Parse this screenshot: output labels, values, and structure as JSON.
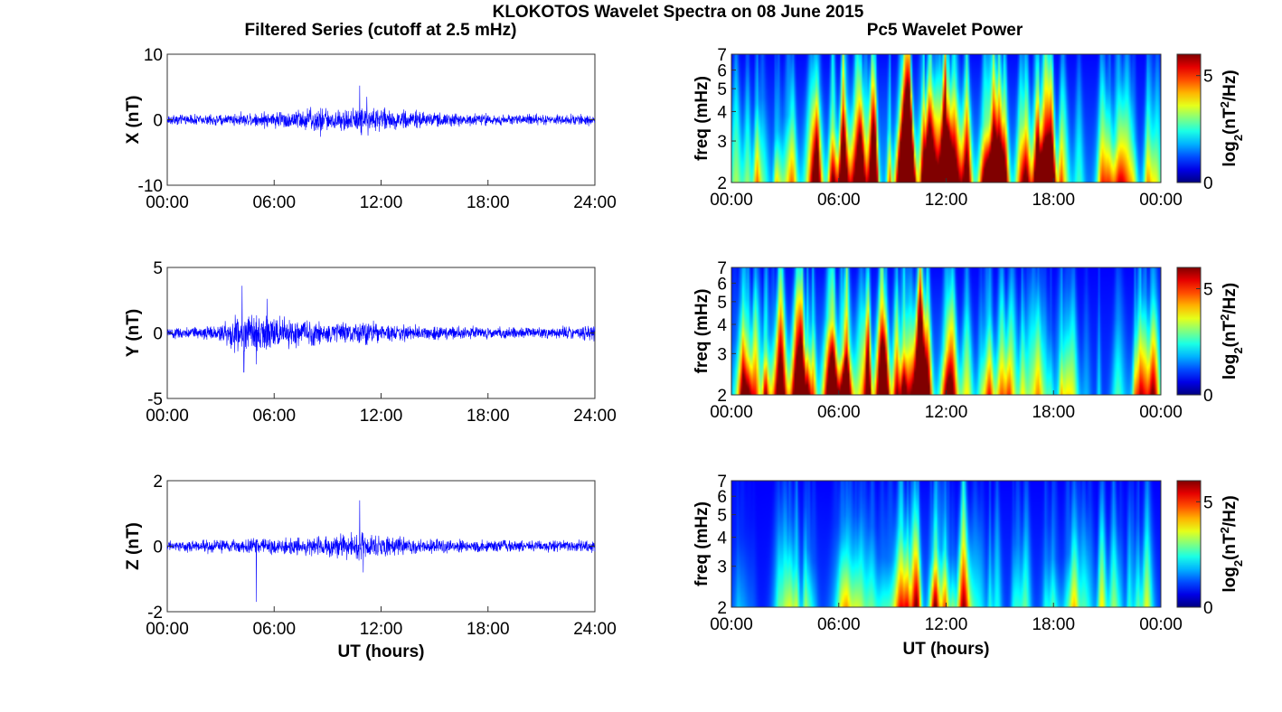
{
  "figure": {
    "title": "KLOKOTOS Wavelet Spectra on 08 June 2015",
    "left_column_title": "Filtered Series (cutoff at 2.5 mHz)",
    "right_column_title": "Pc5 Wavelet Power"
  },
  "colors": {
    "trace": "#0000ff",
    "axis": "#333333"
  },
  "chart_data": [
    {
      "type": "line",
      "name": "filtered-x",
      "ylabel": "X (nT)",
      "xlabel": "",
      "xlim": [
        0,
        24
      ],
      "ylim": [
        -10,
        10
      ],
      "xticks": [
        "00:00",
        "06:00",
        "12:00",
        "18:00",
        "24:00"
      ],
      "yticks": [
        "10",
        "0",
        "-10"
      ],
      "yticks_values": [
        10,
        0,
        -10
      ],
      "baseline_amplitude": 0.45,
      "envelope": [
        [
          0,
          0.9
        ],
        [
          3,
          1.0
        ],
        [
          6,
          1.5
        ],
        [
          8,
          2.2
        ],
        [
          10,
          2.0
        ],
        [
          11,
          2.6
        ],
        [
          12,
          2.0
        ],
        [
          15,
          1.3
        ],
        [
          18,
          1.0
        ],
        [
          24,
          0.9
        ]
      ],
      "spikes": [
        [
          10.8,
          5.2
        ],
        [
          10.9,
          -2.3
        ],
        [
          8.6,
          -2.6
        ],
        [
          11.2,
          3.5
        ]
      ]
    },
    {
      "type": "line",
      "name": "filtered-y",
      "ylabel": "Y (nT)",
      "xlabel": "",
      "xlim": [
        0,
        24
      ],
      "ylim": [
        -5,
        5
      ],
      "xticks": [
        "00:00",
        "06:00",
        "12:00",
        "18:00",
        "24:00"
      ],
      "yticks": [
        "5",
        "0",
        "-5"
      ],
      "yticks_values": [
        5,
        0,
        -5
      ],
      "baseline_amplitude": 0.25,
      "envelope": [
        [
          0,
          0.45
        ],
        [
          3,
          0.7
        ],
        [
          4,
          2.0
        ],
        [
          5,
          1.8
        ],
        [
          6,
          1.5
        ],
        [
          8,
          1.2
        ],
        [
          10,
          0.8
        ],
        [
          11,
          1.3
        ],
        [
          12,
          0.8
        ],
        [
          15,
          0.6
        ],
        [
          18,
          0.5
        ],
        [
          22,
          0.5
        ],
        [
          24,
          0.8
        ]
      ],
      "spikes": [
        [
          4.2,
          3.6
        ],
        [
          4.3,
          -3.0
        ],
        [
          5.0,
          -2.4
        ],
        [
          5.6,
          2.6
        ]
      ]
    },
    {
      "type": "line",
      "name": "filtered-z",
      "ylabel": "Z (nT)",
      "xlabel": "UT (hours)",
      "xlim": [
        0,
        24
      ],
      "ylim": [
        -2,
        2
      ],
      "xticks": [
        "00:00",
        "06:00",
        "12:00",
        "18:00",
        "24:00"
      ],
      "yticks": [
        "2",
        "0",
        "-2"
      ],
      "yticks_values": [
        2,
        0,
        -2
      ],
      "baseline_amplitude": 0.08,
      "envelope": [
        [
          0,
          0.18
        ],
        [
          3,
          0.25
        ],
        [
          6,
          0.3
        ],
        [
          9,
          0.35
        ],
        [
          10.8,
          0.55
        ],
        [
          12,
          0.35
        ],
        [
          15,
          0.25
        ],
        [
          18,
          0.22
        ],
        [
          24,
          0.2
        ]
      ],
      "spikes": [
        [
          5.0,
          -1.7
        ],
        [
          10.8,
          1.4
        ],
        [
          11.0,
          -0.8
        ]
      ]
    },
    {
      "type": "heatmap",
      "name": "wavelet-x",
      "ylabel": "freq (mHz)",
      "xlabel": "",
      "xlim": [
        0,
        24
      ],
      "ylim": [
        2,
        7
      ],
      "y_scale": "log",
      "xticks": [
        "00:00",
        "06:00",
        "12:00",
        "18:00",
        "00:00"
      ],
      "yticks": [
        "2",
        "3",
        "4",
        "5",
        "6",
        "7"
      ],
      "yticks_values": [
        2,
        3,
        4,
        5,
        6,
        7
      ],
      "colorbar_label": "log2(nT2/Hz)",
      "colorbar_ticks": [
        "0",
        "5"
      ],
      "colorbar_ticks_values": [
        0,
        5
      ],
      "clim": [
        0,
        6
      ],
      "colormap": "jet",
      "activity_level": 5.0,
      "activity_profile": [
        [
          0,
          0.9
        ],
        [
          3,
          0.8
        ],
        [
          6,
          0.95
        ],
        [
          8,
          1.1
        ],
        [
          12,
          1.1
        ],
        [
          16,
          0.95
        ],
        [
          20,
          0.7
        ],
        [
          24,
          0.55
        ]
      ]
    },
    {
      "type": "heatmap",
      "name": "wavelet-y",
      "ylabel": "freq (mHz)",
      "xlabel": "",
      "xlim": [
        0,
        24
      ],
      "ylim": [
        2,
        7
      ],
      "y_scale": "log",
      "xticks": [
        "00:00",
        "06:00",
        "12:00",
        "18:00",
        "00:00"
      ],
      "yticks": [
        "2",
        "3",
        "4",
        "5",
        "6",
        "7"
      ],
      "yticks_values": [
        2,
        3,
        4,
        5,
        6,
        7
      ],
      "colorbar_label": "log2(nT2/Hz)",
      "colorbar_ticks": [
        "0",
        "5"
      ],
      "colorbar_ticks_values": [
        0,
        5
      ],
      "clim": [
        0,
        6
      ],
      "colormap": "jet",
      "activity_level": 4.6,
      "activity_profile": [
        [
          0,
          0.6
        ],
        [
          3,
          1.0
        ],
        [
          4,
          1.3
        ],
        [
          6,
          1.15
        ],
        [
          8,
          1.1
        ],
        [
          10,
          0.8
        ],
        [
          11.5,
          1.0
        ],
        [
          13,
          0.65
        ],
        [
          18,
          0.55
        ],
        [
          21,
          0.45
        ],
        [
          23.5,
          0.75
        ],
        [
          24,
          0.5
        ]
      ]
    },
    {
      "type": "heatmap",
      "name": "wavelet-z",
      "ylabel": "freq (mHz)",
      "xlabel": "UT (hours)",
      "xlim": [
        0,
        24
      ],
      "ylim": [
        2,
        7
      ],
      "y_scale": "log",
      "xticks": [
        "00:00",
        "06:00",
        "12:00",
        "18:00",
        "00:00"
      ],
      "yticks": [
        "2",
        "3",
        "4",
        "5",
        "6",
        "7"
      ],
      "yticks_values": [
        2,
        3,
        4,
        5,
        6,
        7
      ],
      "colorbar_label": "log2(nT2/Hz)",
      "colorbar_ticks": [
        "0",
        "5"
      ],
      "colorbar_ticks_values": [
        0,
        5
      ],
      "clim": [
        0,
        6
      ],
      "colormap": "jet",
      "activity_level": 2.6,
      "activity_profile": [
        [
          0,
          0.2
        ],
        [
          2,
          0.4
        ],
        [
          4,
          0.9
        ],
        [
          6,
          0.6
        ],
        [
          8,
          0.9
        ],
        [
          10.5,
          1.4
        ],
        [
          12,
          1.0
        ],
        [
          15,
          0.8
        ],
        [
          18,
          0.7
        ],
        [
          21,
          0.6
        ],
        [
          22.5,
          0.9
        ],
        [
          24,
          0.6
        ]
      ]
    }
  ]
}
